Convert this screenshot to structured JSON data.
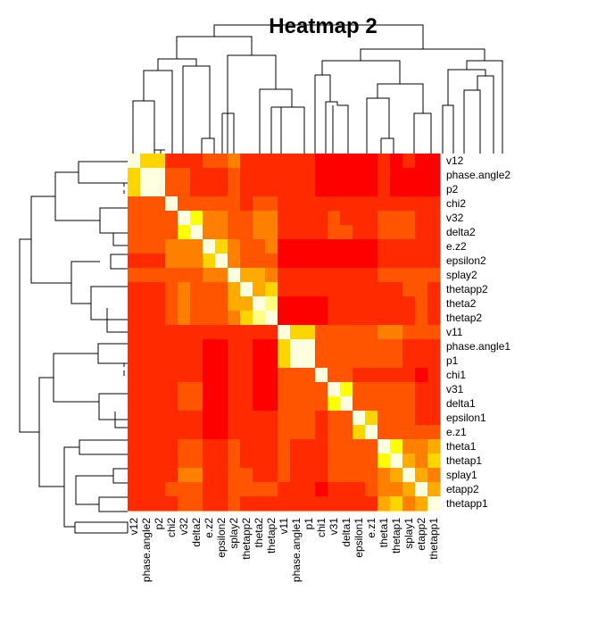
{
  "chart_data": {
    "type": "heatmap",
    "title": "Heatmap 2",
    "rows": [
      "v12",
      "phase.angle2",
      "p2",
      "chi2",
      "v32",
      "delta2",
      "e.z2",
      "epsilon2",
      "splay2",
      "thetapp2",
      "theta2",
      "thetap2",
      "v11",
      "phase.angle1",
      "p1",
      "chi1",
      "v31",
      "delta1",
      "epsilon1",
      "e.z1",
      "theta1",
      "thetap1",
      "splay1",
      "etapp2",
      "thetapp1"
    ],
    "columns": [
      "v12",
      "phase.angle2",
      "p2",
      "chi2",
      "v32",
      "delta2",
      "e.z2",
      "epsilon2",
      "splay2",
      "thetapp2",
      "theta2",
      "thetap2",
      "v11",
      "phase.angle1",
      "p1",
      "chi1",
      "v31",
      "delta1",
      "epsilon1",
      "e.z1",
      "theta1",
      "thetap1",
      "splay1",
      "etapp2",
      "thetapp1"
    ],
    "color_scale": [
      "#ff0000",
      "#ff2a00",
      "#ff5500",
      "#ff8000",
      "#ffaa00",
      "#ffd500",
      "#ffff00",
      "#ffff80",
      "#ffffe0"
    ],
    "values": [
      [
        8,
        5,
        5,
        1,
        1,
        1,
        2,
        2,
        3,
        1,
        1,
        1,
        1,
        1,
        1,
        0,
        0,
        0,
        0,
        0,
        1,
        0,
        1,
        0,
        0
      ],
      [
        5,
        8,
        8,
        2,
        2,
        1,
        1,
        1,
        2,
        1,
        1,
        1,
        1,
        1,
        1,
        0,
        0,
        0,
        0,
        0,
        1,
        0,
        0,
        0,
        0
      ],
      [
        5,
        8,
        8,
        2,
        2,
        1,
        1,
        1,
        2,
        1,
        1,
        1,
        1,
        1,
        1,
        0,
        0,
        0,
        0,
        0,
        1,
        0,
        0,
        0,
        0
      ],
      [
        2,
        2,
        2,
        8,
        2,
        2,
        2,
        2,
        2,
        1,
        2,
        2,
        1,
        1,
        1,
        1,
        1,
        1,
        1,
        1,
        1,
        1,
        1,
        1,
        1
      ],
      [
        2,
        2,
        2,
        2,
        8,
        6,
        3,
        3,
        2,
        2,
        3,
        3,
        1,
        1,
        1,
        1,
        2,
        1,
        1,
        1,
        2,
        2,
        2,
        1,
        1
      ],
      [
        2,
        2,
        2,
        2,
        6,
        8,
        3,
        3,
        2,
        2,
        3,
        3,
        1,
        1,
        1,
        1,
        2,
        2,
        1,
        1,
        2,
        2,
        2,
        1,
        1
      ],
      [
        2,
        2,
        2,
        3,
        3,
        3,
        8,
        5,
        3,
        2,
        2,
        3,
        0,
        0,
        0,
        0,
        0,
        0,
        0,
        0,
        1,
        1,
        1,
        1,
        1
      ],
      [
        1,
        1,
        1,
        3,
        3,
        3,
        5,
        8,
        3,
        2,
        2,
        2,
        0,
        0,
        0,
        0,
        0,
        0,
        0,
        0,
        1,
        1,
        1,
        1,
        1
      ],
      [
        2,
        2,
        2,
        2,
        2,
        2,
        3,
        3,
        8,
        4,
        4,
        3,
        1,
        1,
        1,
        1,
        1,
        1,
        1,
        1,
        2,
        2,
        2,
        2,
        2
      ],
      [
        1,
        1,
        1,
        2,
        3,
        2,
        2,
        2,
        4,
        8,
        4,
        5,
        1,
        1,
        1,
        1,
        1,
        1,
        1,
        1,
        1,
        1,
        2,
        2,
        1
      ],
      [
        1,
        1,
        1,
        2,
        3,
        2,
        2,
        2,
        4,
        4,
        8,
        7,
        0,
        0,
        0,
        0,
        1,
        1,
        1,
        1,
        1,
        1,
        1,
        2,
        1
      ],
      [
        1,
        1,
        1,
        2,
        3,
        2,
        2,
        2,
        3,
        5,
        7,
        8,
        0,
        0,
        0,
        0,
        1,
        1,
        1,
        1,
        1,
        1,
        1,
        2,
        1
      ],
      [
        1,
        1,
        1,
        1,
        1,
        1,
        1,
        1,
        1,
        1,
        1,
        1,
        8,
        5,
        5,
        2,
        2,
        2,
        2,
        2,
        3,
        3,
        2,
        2,
        2
      ],
      [
        1,
        1,
        1,
        1,
        1,
        1,
        0,
        0,
        1,
        1,
        0,
        0,
        5,
        8,
        8,
        2,
        2,
        2,
        2,
        2,
        2,
        2,
        1,
        1,
        1
      ],
      [
        1,
        1,
        1,
        1,
        1,
        1,
        0,
        0,
        1,
        1,
        0,
        0,
        5,
        8,
        8,
        2,
        2,
        2,
        2,
        2,
        2,
        2,
        1,
        1,
        1
      ],
      [
        1,
        1,
        1,
        1,
        1,
        1,
        0,
        0,
        1,
        1,
        0,
        0,
        2,
        2,
        2,
        8,
        2,
        2,
        1,
        1,
        1,
        1,
        1,
        0,
        1
      ],
      [
        1,
        1,
        1,
        1,
        2,
        2,
        0,
        0,
        1,
        1,
        0,
        0,
        2,
        2,
        2,
        2,
        8,
        6,
        2,
        2,
        2,
        2,
        2,
        1,
        1
      ],
      [
        1,
        1,
        1,
        1,
        2,
        2,
        0,
        0,
        1,
        1,
        0,
        0,
        2,
        2,
        2,
        2,
        6,
        8,
        2,
        2,
        2,
        2,
        2,
        1,
        1
      ],
      [
        1,
        1,
        1,
        1,
        1,
        1,
        0,
        0,
        1,
        1,
        1,
        1,
        2,
        2,
        2,
        1,
        2,
        2,
        8,
        5,
        2,
        2,
        2,
        1,
        1
      ],
      [
        1,
        1,
        1,
        1,
        1,
        1,
        0,
        0,
        1,
        1,
        1,
        1,
        2,
        2,
        2,
        1,
        2,
        2,
        5,
        8,
        2,
        2,
        2,
        2,
        2
      ],
      [
        1,
        1,
        1,
        1,
        2,
        2,
        1,
        1,
        2,
        1,
        1,
        1,
        2,
        1,
        1,
        1,
        2,
        2,
        2,
        2,
        8,
        6,
        3,
        3,
        4
      ],
      [
        1,
        1,
        1,
        1,
        2,
        2,
        1,
        1,
        2,
        1,
        1,
        1,
        2,
        1,
        1,
        1,
        2,
        2,
        2,
        2,
        6,
        8,
        4,
        3,
        5
      ],
      [
        1,
        1,
        1,
        1,
        3,
        3,
        1,
        1,
        2,
        2,
        1,
        1,
        2,
        1,
        1,
        1,
        2,
        2,
        2,
        2,
        3,
        4,
        8,
        4,
        3
      ],
      [
        1,
        1,
        1,
        2,
        2,
        2,
        1,
        1,
        2,
        2,
        2,
        2,
        1,
        1,
        1,
        0,
        1,
        1,
        1,
        2,
        3,
        3,
        4,
        8,
        4
      ],
      [
        1,
        1,
        1,
        1,
        2,
        2,
        1,
        1,
        2,
        1,
        1,
        1,
        1,
        1,
        1,
        1,
        1,
        1,
        1,
        1,
        4,
        5,
        3,
        4,
        8
      ]
    ]
  }
}
